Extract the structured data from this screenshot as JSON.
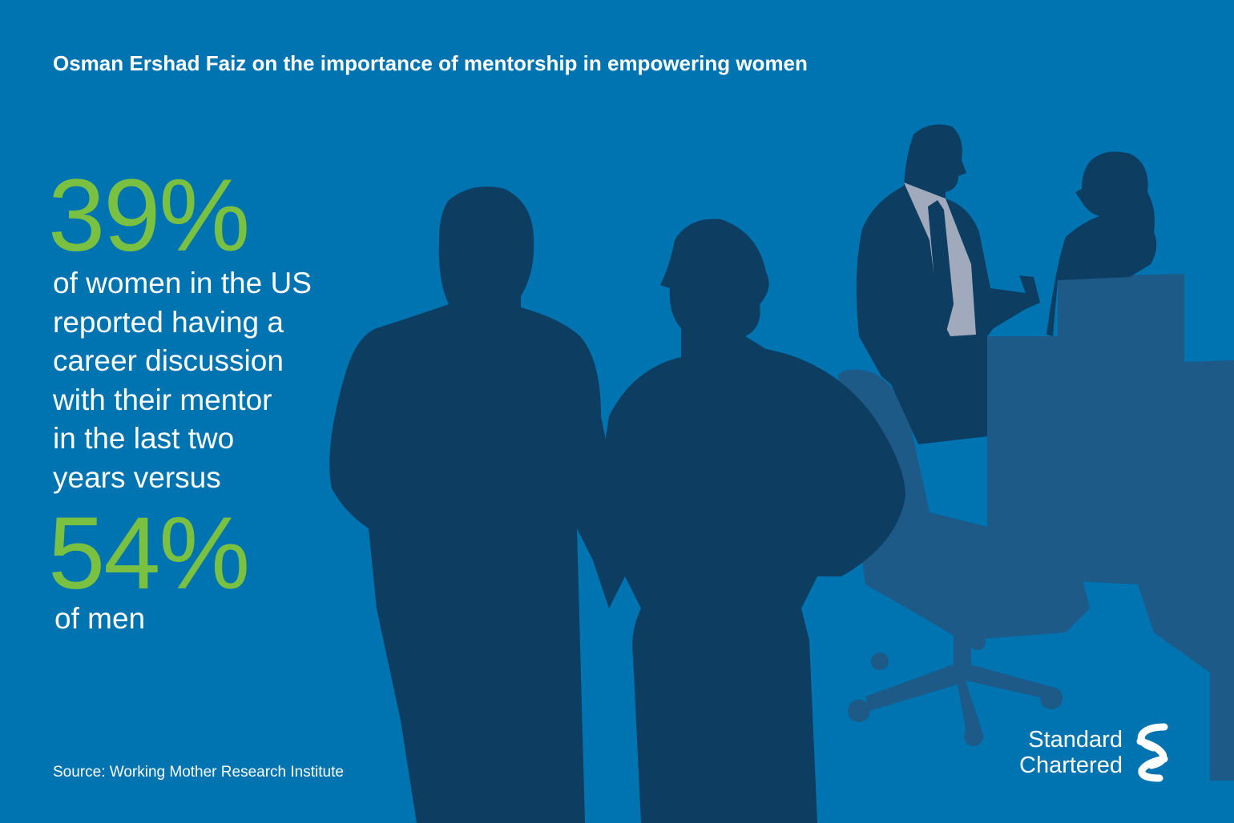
{
  "headline": "Osman Ershad Faiz on the importance of mentorship in empowering women",
  "stat_women": "39%",
  "body_lines": [
    "of women in the US",
    "reported having a",
    "career discussion",
    "with their mentor",
    "in the last two",
    "years versus"
  ],
  "stat_men": "54%",
  "men_label": "of men",
  "source": "Source: Working Mother Research Institute",
  "brand": {
    "line1": "Standard",
    "line2": "Chartered",
    "logo_icon": "standard-chartered-logo-icon"
  },
  "colors": {
    "background": "#0073b1",
    "accent": "#7ac142",
    "silhouette": "#0d3d61",
    "furniture": "#1d5a88",
    "text": "#ffffff"
  }
}
